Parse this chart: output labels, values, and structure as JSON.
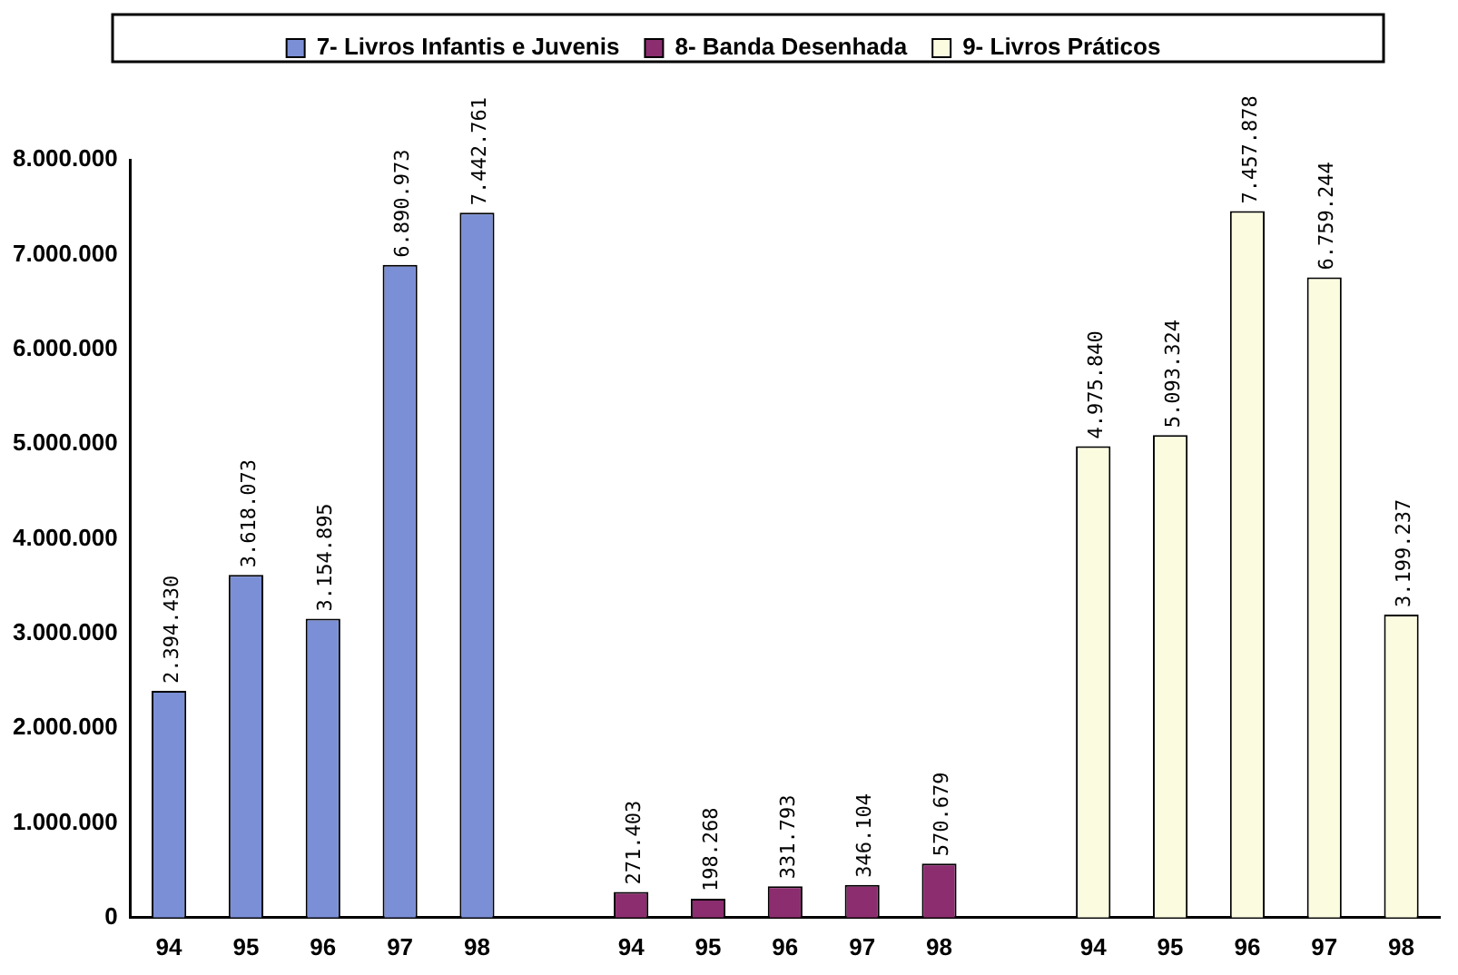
{
  "chart_data": {
    "type": "bar",
    "categories": [
      "94",
      "95",
      "96",
      "97",
      "98",
      null,
      "94",
      "95",
      "96",
      "97",
      "98",
      null,
      "94",
      "95",
      "96",
      "97",
      "98"
    ],
    "series": [
      {
        "name": "7- Livros Infantis e Juvenis",
        "color": "#7b8fd6",
        "values": [
          2394430,
          3618073,
          3154895,
          6890973,
          7442761,
          null,
          null,
          null,
          null,
          null,
          null,
          null,
          null,
          null,
          null,
          null,
          null
        ],
        "value_labels": [
          "2.394.430",
          "3.618.073",
          "3.154.895",
          "6.890.973",
          "7.442.761",
          null,
          null,
          null,
          null,
          null,
          null,
          null,
          null,
          null,
          null,
          null,
          null
        ]
      },
      {
        "name": "8- Banda Desenhada",
        "color": "#8b2d6e",
        "values": [
          null,
          null,
          null,
          null,
          null,
          null,
          271403,
          198268,
          331793,
          346104,
          570679,
          null,
          null,
          null,
          null,
          null,
          null
        ],
        "value_labels": [
          null,
          null,
          null,
          null,
          null,
          null,
          "271.403",
          "198.268",
          "331.793",
          "346.104",
          "570.679",
          null,
          null,
          null,
          null,
          null,
          null
        ]
      },
      {
        "name": "9- Livros Práticos",
        "color": "#fbfbe0",
        "values": [
          null,
          null,
          null,
          null,
          null,
          null,
          null,
          null,
          null,
          null,
          null,
          null,
          4975840,
          5093324,
          7457878,
          6759244,
          3199237
        ],
        "value_labels": [
          null,
          null,
          null,
          null,
          null,
          null,
          null,
          null,
          null,
          null,
          null,
          null,
          "4.975.840",
          "5.093.324",
          "7.457.878",
          "6.759.244",
          "3.199.237"
        ]
      }
    ],
    "ylim": [
      0,
      8000000
    ],
    "yticks": [
      {
        "value": 0,
        "label": "0"
      },
      {
        "value": 1000000,
        "label": "1.000.000"
      },
      {
        "value": 2000000,
        "label": "2.000.000"
      },
      {
        "value": 3000000,
        "label": "3.000.000"
      },
      {
        "value": 4000000,
        "label": "4.000.000"
      },
      {
        "value": 5000000,
        "label": "5.000.000"
      },
      {
        "value": 6000000,
        "label": "6.000.000"
      },
      {
        "value": 7000000,
        "label": "7.000.000"
      },
      {
        "value": 8000000,
        "label": "8.000.000"
      }
    ],
    "grid": false,
    "legend": "top"
  }
}
